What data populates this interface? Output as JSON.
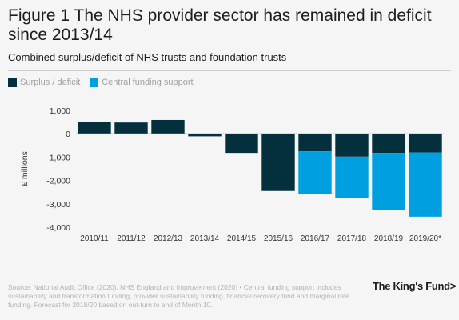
{
  "header": {
    "title": "Figure 1 The NHS provider sector has remained in deficit since 2013/14",
    "subtitle": "Combined surplus/deficit of NHS trusts and foundation trusts"
  },
  "legend": {
    "items": [
      {
        "label": "Surplus / deficit",
        "color": "#04303e"
      },
      {
        "label": "Central funding support",
        "color": "#009fdf"
      }
    ]
  },
  "chart_data": {
    "type": "bar",
    "stacked": true,
    "title": "Figure 1 The NHS provider sector has remained in deficit since 2013/14",
    "subtitle": "Combined surplus/deficit of NHS trusts and foundation trusts",
    "xlabel": "",
    "ylabel": "£ millions",
    "ylim": [
      -4000,
      1000
    ],
    "yticks": [
      1000,
      0,
      -1000,
      -2000,
      -3000,
      -4000
    ],
    "ytick_labels": [
      "1,000",
      "0",
      "-1,000",
      "-2,000",
      "-3,000",
      "-4,000"
    ],
    "categories": [
      "2010/11",
      "2011/12",
      "2012/13",
      "2013/14",
      "2014/15",
      "2015/16",
      "2016/17",
      "2017/18",
      "2018/19",
      "2019/20*"
    ],
    "series": [
      {
        "name": "Surplus / deficit",
        "color": "#04303e",
        "values": [
          520,
          480,
          590,
          -110,
          -820,
          -2450,
          -750,
          -980,
          -820,
          -800
        ]
      },
      {
        "name": "Central funding support",
        "color": "#009fdf",
        "values": [
          0,
          0,
          0,
          0,
          0,
          0,
          -1820,
          -1780,
          -2440,
          -2750
        ]
      }
    ],
    "grid": false,
    "legend_position": "top-left"
  },
  "footer": {
    "source": "Source: National Audit Office (2020), NHS England and Improvement (2020) • Central funding support includes sustainability and transformation funding, provider sustainability funding, financial recovery fund and marginal rate funding. Forecast for 2019/20 based on out-turn to end of Month 10.",
    "logo_text": "The King's Fund>"
  }
}
